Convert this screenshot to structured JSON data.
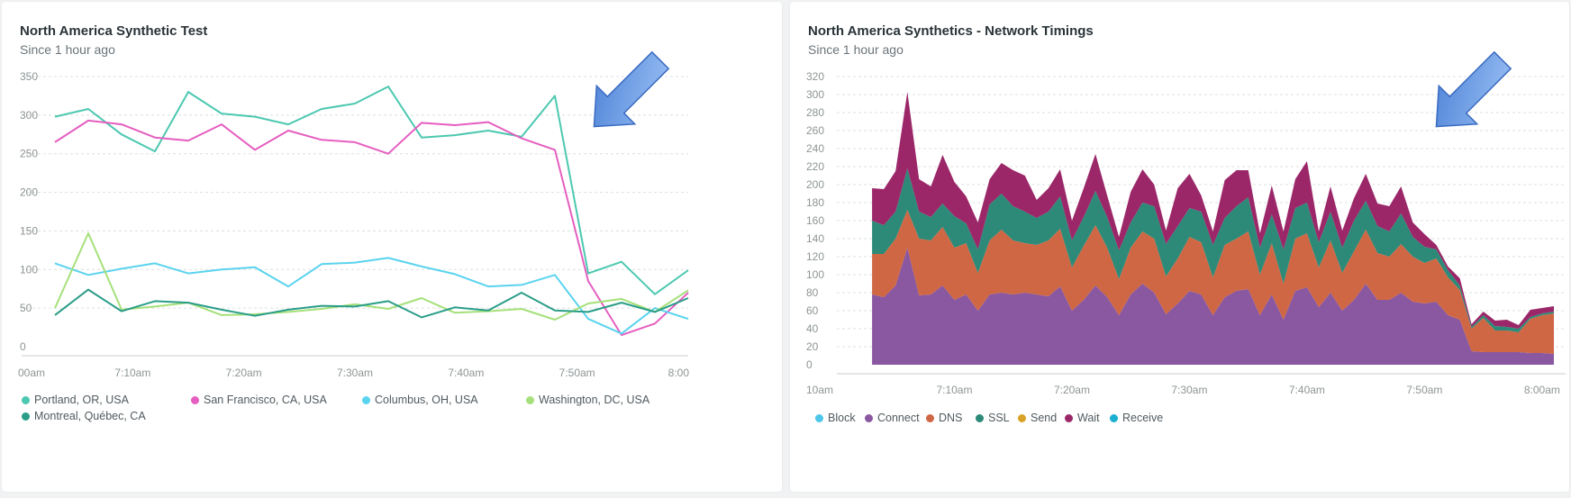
{
  "colors": {
    "portland": "#4cc8b0",
    "sanfrancisco": "#e55ec0",
    "columbus": "#5ad3ef",
    "washington": "#a5e07a",
    "montreal": "#2a9d88",
    "block": "#4dc6ea",
    "connect": "#8a58a0",
    "dns": "#cf6744",
    "ssl": "#2d8a78",
    "send": "#d9a227",
    "wait": "#9b2769",
    "receive": "#1aafd0",
    "arrow": "#6b9fe6"
  },
  "panels": [
    {
      "title": "North America Synthetic Test",
      "subtitle": "Since 1 hour ago"
    },
    {
      "title": "North America Synthetics - Network Timings",
      "subtitle": "Since 1 hour ago"
    }
  ],
  "chart_data": [
    {
      "type": "line",
      "title": "North America Synthetic Test",
      "subtitle": "Since 1 hour ago",
      "x_unit": "minutes after 7:00am",
      "x": [
        3,
        6,
        9,
        12,
        15,
        18,
        21,
        24,
        27,
        30,
        33,
        36,
        39,
        42,
        45,
        48,
        51,
        54,
        57,
        60
      ],
      "xlim": [
        0,
        60
      ],
      "ylim": [
        0,
        350
      ],
      "yticks": [
        0,
        50,
        100,
        150,
        200,
        250,
        300,
        350
      ],
      "xtick_labels": [
        "00am",
        "7:10am",
        "7:20am",
        "7:30am",
        "7:40am",
        "7:50am",
        "8:00"
      ],
      "grid": true,
      "legend_position": "bottom",
      "series": [
        {
          "name": "Portland, OR, USA",
          "color_key": "portland",
          "values": [
            298,
            308,
            275,
            253,
            330,
            302,
            298,
            288,
            308,
            315,
            337,
            271,
            274,
            280,
            272,
            325,
            95,
            110,
            68,
            99
          ]
        },
        {
          "name": "San Francisco, CA, USA",
          "color_key": "sanfrancisco",
          "values": [
            265,
            293,
            288,
            271,
            267,
            288,
            255,
            280,
            268,
            265,
            250,
            290,
            287,
            291,
            270,
            255,
            85,
            15,
            30,
            70
          ]
        },
        {
          "name": "Columbus, OH, USA",
          "color_key": "columbus",
          "values": [
            108,
            93,
            101,
            108,
            95,
            100,
            103,
            78,
            107,
            109,
            115,
            104,
            94,
            78,
            80,
            93,
            36,
            17,
            50,
            36
          ]
        },
        {
          "name": "Washington, DC, USA",
          "color_key": "washington",
          "values": [
            50,
            147,
            48,
            52,
            57,
            41,
            42,
            45,
            49,
            55,
            49,
            63,
            44,
            46,
            49,
            35,
            56,
            62,
            45,
            73
          ]
        },
        {
          "name": "Montreal, Québec, CA",
          "color_key": "montreal",
          "values": [
            41,
            74,
            46,
            59,
            57,
            48,
            40,
            48,
            53,
            52,
            59,
            38,
            51,
            47,
            70,
            47,
            45,
            57,
            45,
            63
          ]
        }
      ]
    },
    {
      "type": "area",
      "stacked": true,
      "title": "North America Synthetics - Network Timings",
      "subtitle": "Since 1 hour ago",
      "x_unit": "minutes after 7:00am",
      "ylim": [
        0,
        320
      ],
      "yticks": [
        0,
        20,
        40,
        60,
        80,
        100,
        120,
        140,
        160,
        180,
        200,
        220,
        240,
        260,
        280,
        300,
        320
      ],
      "xtick_labels": [
        "10am",
        "7:10am",
        "7:20am",
        "7:30am",
        "7:40am",
        "7:50am",
        "8:00am"
      ],
      "grid": true,
      "legend_position": "bottom",
      "x": [
        3,
        4,
        5,
        6,
        7,
        8,
        9,
        10,
        11,
        12,
        13,
        14,
        15,
        16,
        17,
        18,
        19,
        20,
        21,
        22,
        23,
        24,
        25,
        26,
        27,
        28,
        29,
        30,
        31,
        32,
        33,
        34,
        35,
        36,
        37,
        38,
        39,
        40,
        41,
        42,
        43,
        44,
        45,
        46,
        47,
        48,
        49,
        50,
        51,
        52,
        53,
        54,
        55,
        56,
        57,
        58,
        59,
        60,
        61
      ],
      "series": [
        {
          "name": "Block",
          "color_key": "block",
          "values": [
            0,
            0,
            0,
            0,
            0,
            0,
            0,
            0,
            0,
            0,
            0,
            0,
            0,
            0,
            0,
            0,
            0,
            0,
            0,
            0,
            0,
            0,
            0,
            0,
            0,
            0,
            0,
            0,
            0,
            0,
            0,
            0,
            0,
            0,
            0,
            0,
            0,
            0,
            0,
            0,
            0,
            0,
            0,
            0,
            0,
            0,
            0,
            0,
            0,
            0,
            0,
            0,
            0,
            0,
            0,
            0,
            0,
            0,
            0
          ]
        },
        {
          "name": "Connect",
          "color_key": "connect",
          "values": [
            78,
            75,
            88,
            130,
            77,
            78,
            88,
            72,
            78,
            60,
            78,
            80,
            78,
            80,
            78,
            76,
            87,
            60,
            72,
            88,
            75,
            55,
            78,
            90,
            80,
            56,
            68,
            82,
            78,
            55,
            75,
            82,
            84,
            55,
            78,
            50,
            82,
            86,
            64,
            80,
            60,
            72,
            90,
            72,
            72,
            80,
            70,
            68,
            70,
            55,
            50,
            15,
            14,
            14,
            14,
            14,
            13,
            13,
            12
          ]
        },
        {
          "name": "DNS",
          "color_key": "dns",
          "values": [
            45,
            48,
            52,
            42,
            63,
            60,
            65,
            58,
            57,
            42,
            60,
            70,
            60,
            55,
            55,
            62,
            64,
            48,
            60,
            67,
            55,
            40,
            52,
            58,
            60,
            42,
            50,
            60,
            58,
            42,
            58,
            58,
            64,
            45,
            57,
            40,
            58,
            60,
            44,
            58,
            42,
            54,
            60,
            52,
            48,
            54,
            50,
            45,
            48,
            42,
            33,
            25,
            38,
            24,
            24,
            22,
            38,
            42,
            45
          ]
        },
        {
          "name": "SSL",
          "color_key": "ssl",
          "values": [
            37,
            32,
            30,
            46,
            30,
            26,
            26,
            35,
            22,
            26,
            40,
            40,
            38,
            35,
            30,
            32,
            36,
            30,
            32,
            38,
            34,
            32,
            28,
            32,
            36,
            36,
            36,
            32,
            34,
            36,
            30,
            36,
            38,
            30,
            32,
            38,
            34,
            34,
            28,
            32,
            28,
            34,
            32,
            30,
            28,
            34,
            22,
            18,
            10,
            8,
            5,
            2,
            3,
            5,
            4,
            4,
            2,
            2,
            2
          ]
        },
        {
          "name": "Send",
          "color_key": "send",
          "values": [
            0,
            0,
            0,
            0,
            0,
            0,
            0,
            0,
            0,
            0,
            0,
            0,
            0,
            0,
            0,
            0,
            0,
            0,
            0,
            0,
            0,
            0,
            0,
            0,
            0,
            0,
            0,
            0,
            0,
            0,
            0,
            0,
            0,
            0,
            0,
            0,
            0,
            0,
            0,
            0,
            0,
            0,
            0,
            0,
            0,
            0,
            0,
            0,
            0,
            0,
            0,
            0,
            0,
            0,
            0,
            0,
            0,
            0,
            0
          ]
        },
        {
          "name": "Wait",
          "color_key": "wait",
          "values": [
            36,
            40,
            45,
            85,
            36,
            34,
            54,
            38,
            30,
            30,
            28,
            34,
            40,
            40,
            20,
            26,
            30,
            22,
            32,
            41,
            24,
            15,
            34,
            37,
            24,
            15,
            42,
            38,
            18,
            15,
            42,
            40,
            30,
            16,
            32,
            20,
            32,
            46,
            12,
            28,
            19,
            25,
            30,
            25,
            28,
            30,
            16,
            14,
            5,
            4,
            8,
            3,
            4,
            6,
            8,
            4,
            8,
            6,
            6
          ]
        },
        {
          "name": "Receive",
          "color_key": "receive",
          "values": [
            0,
            0,
            0,
            0,
            0,
            0,
            0,
            0,
            0,
            0,
            0,
            0,
            0,
            0,
            0,
            0,
            0,
            0,
            0,
            0,
            0,
            0,
            0,
            0,
            0,
            0,
            0,
            0,
            0,
            0,
            0,
            0,
            0,
            0,
            0,
            0,
            0,
            0,
            0,
            0,
            0,
            0,
            0,
            0,
            0,
            0,
            0,
            0,
            0,
            0,
            0,
            0,
            0,
            0,
            0,
            0,
            0,
            0,
            0
          ]
        }
      ]
    }
  ]
}
